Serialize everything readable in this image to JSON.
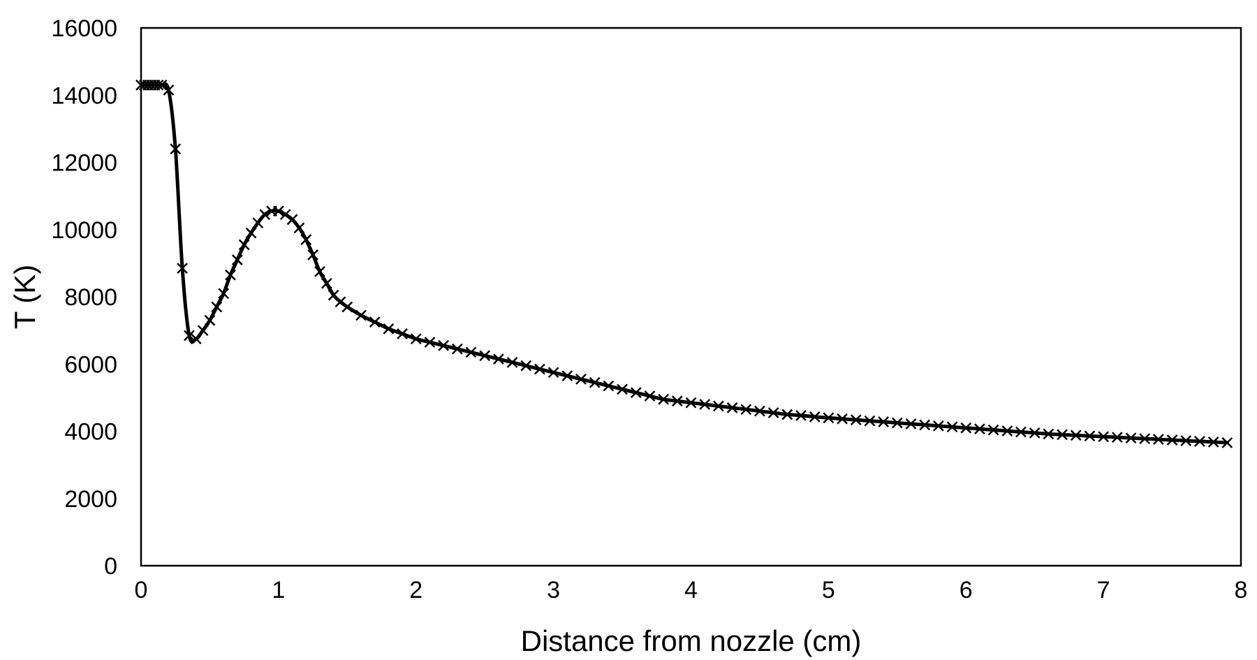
{
  "chart_data": {
    "type": "line",
    "xlabel": "Distance from nozzle (cm)",
    "ylabel": "T (K)",
    "xlim": [
      0,
      8
    ],
    "ylim": [
      0,
      16000
    ],
    "xticks": [
      0,
      1,
      2,
      3,
      4,
      5,
      6,
      7,
      8
    ],
    "yticks": [
      0,
      2000,
      4000,
      6000,
      8000,
      10000,
      12000,
      14000,
      16000
    ],
    "grid": false,
    "legend": "none",
    "line_color": "#000000",
    "marker": "x-mark",
    "series": [
      {
        "x": [
          0,
          0.025,
          0.05,
          0.075,
          0.1,
          0.125,
          0.15,
          0.2,
          0.25,
          0.3,
          0.35,
          0.4,
          0.45,
          0.5,
          0.55,
          0.6,
          0.65,
          0.7,
          0.75,
          0.8,
          0.85,
          0.9,
          0.95,
          1.0,
          1.05,
          1.1,
          1.15,
          1.2,
          1.25,
          1.3,
          1.35,
          1.4,
          1.45,
          1.5,
          1.6,
          1.7,
          1.8,
          1.9,
          2.0,
          2.1,
          2.2,
          2.3,
          2.4,
          2.5,
          2.6,
          2.7,
          2.8,
          2.9,
          3.0,
          3.1,
          3.2,
          3.3,
          3.4,
          3.5,
          3.6,
          3.7,
          3.8,
          3.9,
          4.0,
          4.1,
          4.2,
          4.3,
          4.4,
          4.5,
          4.6,
          4.7,
          4.8,
          4.9,
          5.0,
          5.1,
          5.2,
          5.3,
          5.4,
          5.5,
          5.6,
          5.7,
          5.8,
          5.9,
          6.0,
          6.1,
          6.2,
          6.3,
          6.4,
          6.5,
          6.6,
          6.7,
          6.8,
          6.9,
          7.0,
          7.1,
          7.2,
          7.3,
          7.4,
          7.5,
          7.6,
          7.7,
          7.8,
          7.9
        ],
        "y": [
          14300,
          14300,
          14300,
          14300,
          14300,
          14300,
          14300,
          14150,
          12400,
          8850,
          6850,
          6750,
          7000,
          7300,
          7700,
          8100,
          8650,
          9100,
          9550,
          9900,
          10200,
          10450,
          10550,
          10550,
          10450,
          10300,
          10050,
          9700,
          9250,
          8750,
          8400,
          8050,
          7850,
          7700,
          7450,
          7250,
          7050,
          6900,
          6750,
          6650,
          6550,
          6450,
          6350,
          6250,
          6150,
          6050,
          5950,
          5850,
          5750,
          5650,
          5550,
          5450,
          5350,
          5250,
          5150,
          5050,
          4950,
          4900,
          4850,
          4800,
          4750,
          4700,
          4650,
          4600,
          4550,
          4500,
          4470,
          4430,
          4400,
          4370,
          4340,
          4310,
          4280,
          4250,
          4220,
          4190,
          4160,
          4130,
          4100,
          4070,
          4040,
          4010,
          3980,
          3950,
          3920,
          3900,
          3880,
          3860,
          3840,
          3820,
          3800,
          3780,
          3760,
          3740,
          3720,
          3700,
          3680,
          3660
        ]
      }
    ]
  }
}
